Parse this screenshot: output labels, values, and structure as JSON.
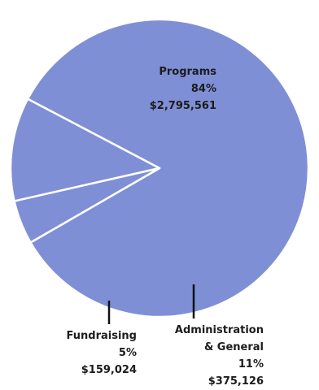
{
  "chart_data": {
    "type": "pie",
    "colors": {
      "slice": "#7f8fd6",
      "separator": "#ffffff",
      "leader": "#111111"
    },
    "slices": [
      {
        "name": "Programs",
        "percent": "84%",
        "amount": "$2,795,561",
        "value": 2795561
      },
      {
        "name_lines": [
          "Administration",
          "& General"
        ],
        "percent": "11%",
        "amount": "$375,126",
        "value": 375126
      },
      {
        "name": "Fundraising",
        "percent": "5%",
        "amount": "$159,024",
        "value": 159024
      }
    ]
  }
}
